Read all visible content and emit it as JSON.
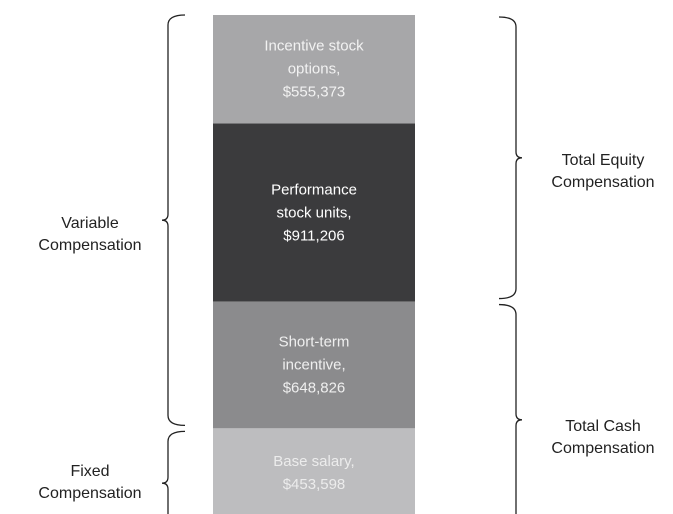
{
  "chart_data": {
    "type": "stacked-column",
    "series": [
      {
        "name": "Incentive stock options,",
        "color": "#a7a7a9",
        "text_color": "#f2f2f2",
        "values": [
          555373
        ],
        "value_labels": [
          "$555,373"
        ]
      },
      {
        "name": "Performance stock units,",
        "color": "#3b3b3d",
        "text_color": "#ffffff",
        "values": [
          911206
        ],
        "value_labels": [
          "$911,206"
        ]
      },
      {
        "name": "Short-term incentive,",
        "color": "#8b8b8d",
        "text_color": "#efefef",
        "values": [
          648826
        ],
        "value_labels": [
          "$648,826"
        ]
      },
      {
        "name": "Base salary,",
        "color": "#bdbdbf",
        "text_color": "#ececec",
        "values": [
          453598
        ],
        "value_labels": [
          "$453,598"
        ]
      }
    ],
    "annotations": [
      {
        "label": "Variable Compensation",
        "side": "left",
        "from": 0,
        "to": 2
      },
      {
        "label": "Fixed Compensation",
        "side": "left",
        "from": 3,
        "to": 3
      },
      {
        "label": "Total Equity Compensation",
        "side": "right",
        "from": 0,
        "to": 1
      },
      {
        "label": "Total Cash Compensation",
        "side": "right",
        "from": 2,
        "to": 3
      }
    ]
  }
}
